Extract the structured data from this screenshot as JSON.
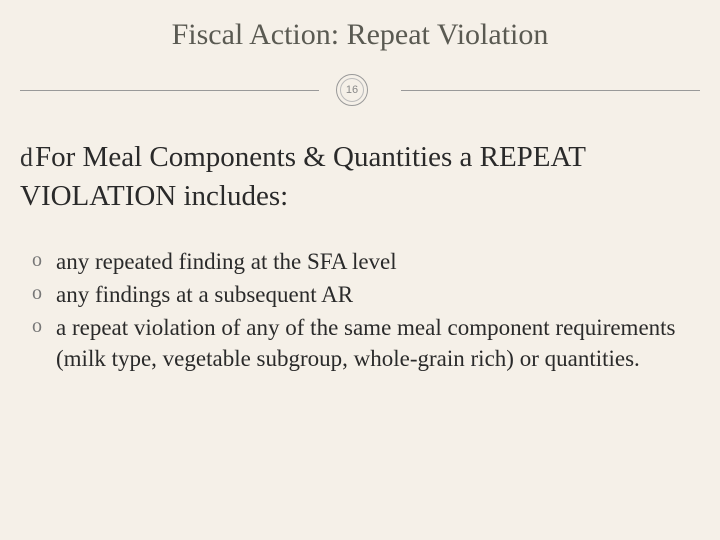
{
  "slide": {
    "title": "Fiscal Action: Repeat Violation",
    "page_number": "16",
    "heading_bullet": "d",
    "heading": "For Meal Components & Quantities a REPEAT VIOLATION includes:",
    "items": [
      "any repeated finding at the SFA level",
      "any findings at a subsequent AR",
      "a repeat violation of any of the same meal component requirements (milk type, vegetable subgroup, whole-grain rich) or quantities."
    ],
    "colors": {
      "background": "#f5f0e8",
      "title_color": "#5a5a52",
      "body_color": "#2a2a2a",
      "line_color": "#999999"
    }
  }
}
